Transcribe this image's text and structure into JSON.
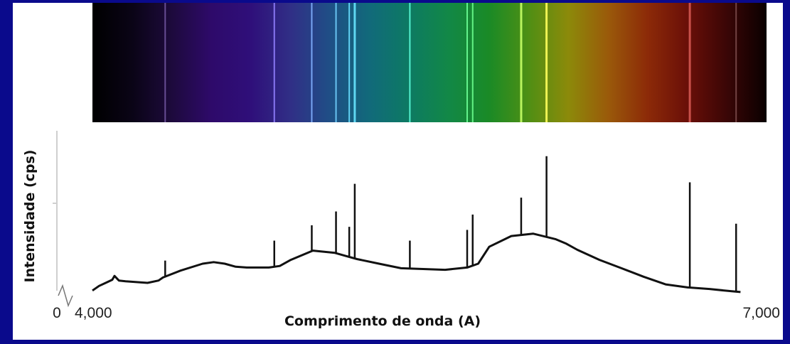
{
  "chart_data": {
    "type": "line",
    "xlabel": "Comprimento de onda (A)",
    "ylabel": "Intensidade (cps)",
    "x_origin_label": "0",
    "x_tick_labels": [
      "4,000",
      "7,000"
    ],
    "xlim": [
      4000,
      7000
    ],
    "ylim": [
      0,
      100
    ],
    "grid": false,
    "spectrum_colors": [
      "#000000",
      "#0a0416",
      "#1d0a3c",
      "#2e0a6a",
      "#2f0f7a",
      "#302f86",
      "#1f4f86",
      "#116a7a",
      "#0d7a62",
      "#128846",
      "#1a8a26",
      "#4f8f14",
      "#8c8a0a",
      "#9a5a0a",
      "#8c2a08",
      "#6a0f08",
      "#3a0606",
      "#0a0000"
    ],
    "series": [
      {
        "x": [
          4000,
          4030,
          4060,
          4090,
          4100,
          4120,
          4150,
          4200,
          4250,
          4300,
          4320,
          4400,
          4500,
          4550,
          4600,
          4650,
          4700,
          4800,
          4850,
          4900,
          5000,
          5100,
          5150,
          5200,
          5300,
          5400,
          5500,
          5600,
          5700,
          5750,
          5800,
          5900,
          6000,
          6100,
          6150,
          6200,
          6300,
          6400,
          6500,
          6600,
          6700,
          6800,
          6900,
          6940
        ],
        "y": [
          1.5,
          4.5,
          6.5,
          8.5,
          11,
          8,
          7.5,
          7,
          6.5,
          8,
          10,
          14.5,
          19,
          20,
          19,
          17,
          16.5,
          16.5,
          17.5,
          21.5,
          27.5,
          26,
          24,
          22,
          19,
          16,
          15.5,
          15,
          16.5,
          19,
          30,
          37,
          38.5,
          35,
          32,
          28,
          21.5,
          16,
          10.5,
          5.5,
          3.5,
          2.5,
          1,
          0.5
        ]
      }
    ],
    "emission_lines": [
      {
        "x": 4330,
        "y": 21
      },
      {
        "x": 4825,
        "y": 34
      },
      {
        "x": 4995,
        "y": 44
      },
      {
        "x": 5105,
        "y": 53
      },
      {
        "x": 5165,
        "y": 43
      },
      {
        "x": 5190,
        "y": 71
      },
      {
        "x": 5440,
        "y": 34
      },
      {
        "x": 5700,
        "y": 41
      },
      {
        "x": 5725,
        "y": 51
      },
      {
        "x": 5945,
        "y": 62
      },
      {
        "x": 6060,
        "y": 89
      },
      {
        "x": 6710,
        "y": 72
      },
      {
        "x": 6920,
        "y": 45
      }
    ]
  }
}
